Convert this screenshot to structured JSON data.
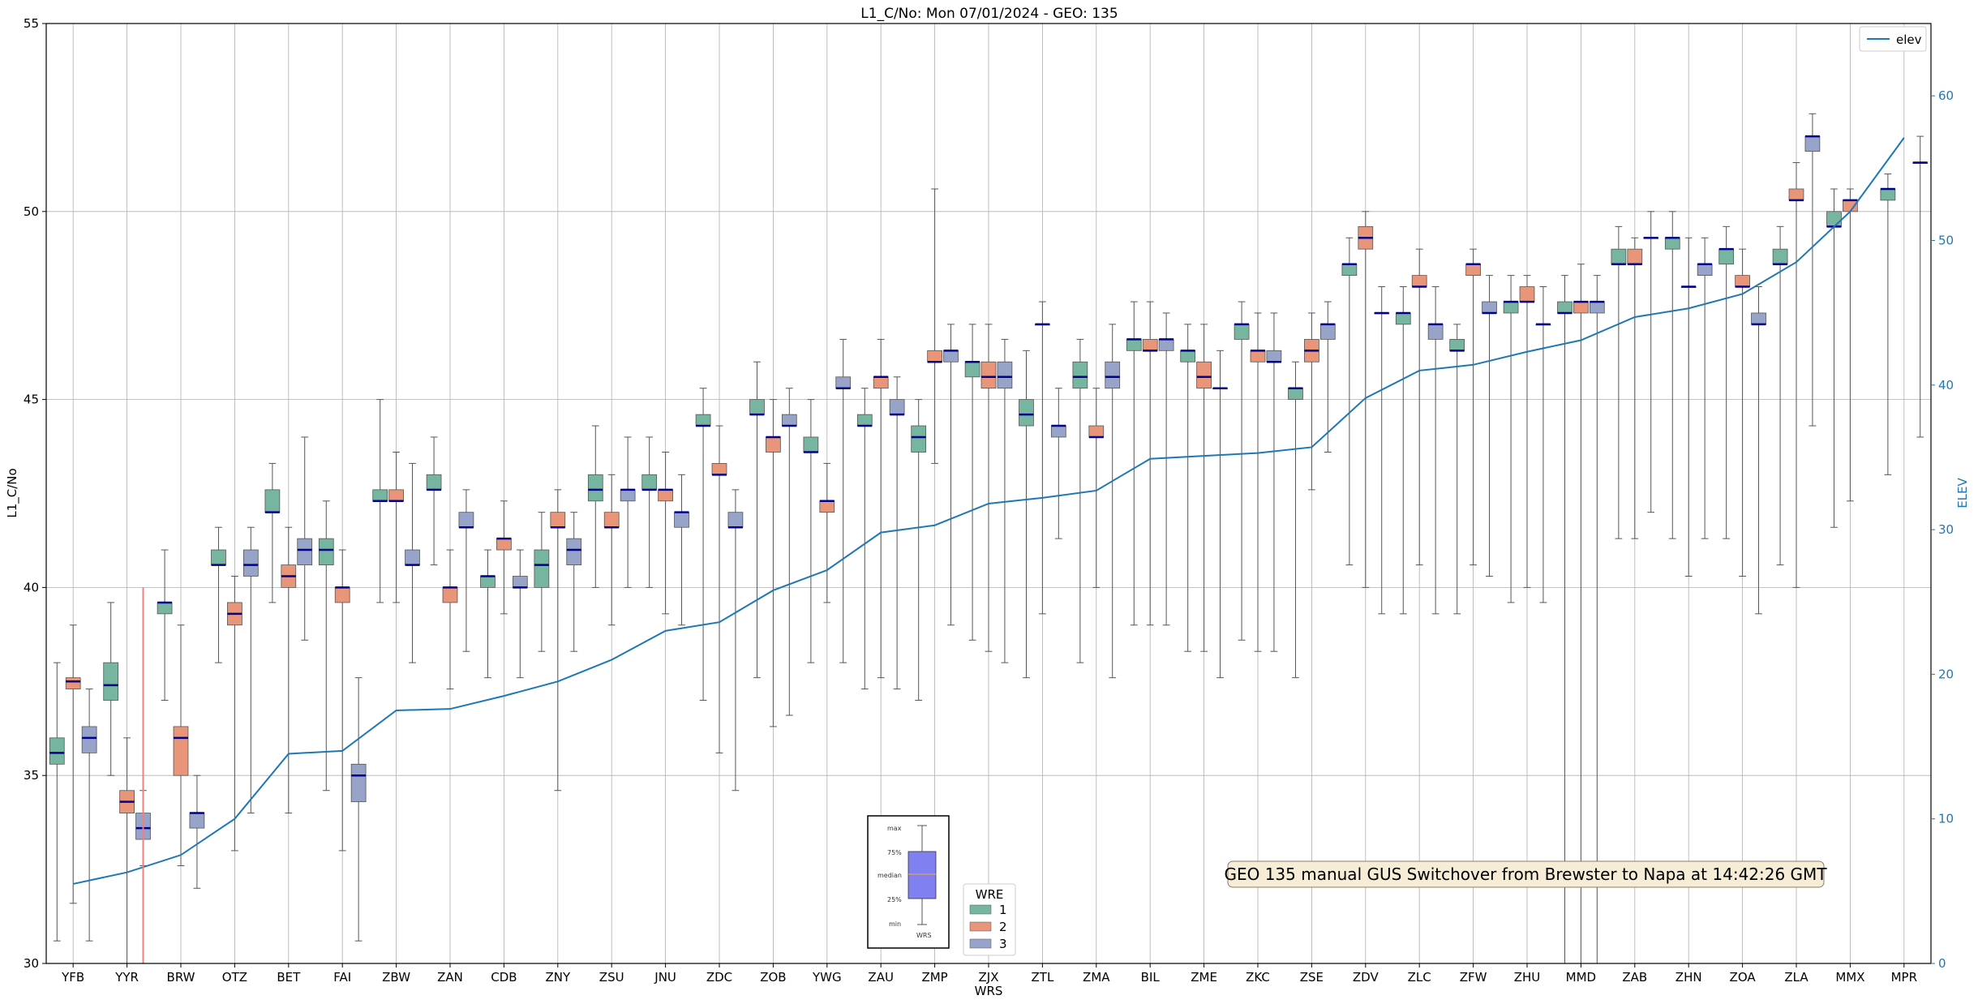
{
  "chart_data": {
    "type": "box",
    "title": "L1_C/No: Mon 07/01/2024 - GEO: 135",
    "xlabel": "WRS",
    "ylabel": "L1_C/No",
    "y2label": "ELEV",
    "ylim": [
      30,
      55
    ],
    "y2lim": [
      0,
      65
    ],
    "yticks": [
      "30",
      "35",
      "40",
      "45",
      "50",
      "55"
    ],
    "y2ticks": [
      "0",
      "10",
      "20",
      "30",
      "40",
      "50",
      "60"
    ],
    "grid": true,
    "categories": [
      "YFB",
      "YYR",
      "BRW",
      "OTZ",
      "BET",
      "FAI",
      "ZBW",
      "ZAN",
      "CDB",
      "ZNY",
      "ZSU",
      "JNU",
      "ZDC",
      "ZOB",
      "YWG",
      "ZAU",
      "ZMP",
      "ZJX",
      "ZTL",
      "ZMA",
      "BIL",
      "ZME",
      "ZKC",
      "ZSE",
      "ZDV",
      "ZLC",
      "ZFW",
      "ZHU",
      "MMD",
      "ZAB",
      "ZHN",
      "ZOA",
      "ZLA",
      "MMX",
      "MPR"
    ],
    "wre_legend": {
      "title": "WRE",
      "entries": [
        {
          "name": "1",
          "color": "#76b5a0"
        },
        {
          "name": "2",
          "color": "#e8957a"
        },
        {
          "name": "3",
          "color": "#97a3c8"
        }
      ]
    },
    "elev_legend": {
      "name": "elev",
      "color": "#1f77b4"
    },
    "median_color": "#00008b",
    "vline": {
      "x": "YYR",
      "offset": 0.3,
      "color": "#f08080",
      "y": [
        30,
        40
      ]
    },
    "annotation": "GEO 135 manual GUS Switchover from Brewster to Napa at 14:42:26 GMT",
    "inset_labels": [
      "max",
      "75%",
      "median",
      "25%",
      "min",
      "WRS"
    ],
    "boxes": [
      {
        "cat": 0,
        "wre": 1,
        "min": 30.6,
        "q1": 35.3,
        "median": 35.6,
        "q3": 36.0,
        "max": 38.0
      },
      {
        "cat": 0,
        "wre": 2,
        "min": 31.6,
        "q1": 37.3,
        "median": 37.5,
        "q3": 37.6,
        "max": 39.0
      },
      {
        "cat": 0,
        "wre": 3,
        "min": 30.6,
        "q1": 35.6,
        "median": 36.0,
        "q3": 36.3,
        "max": 37.3
      },
      {
        "cat": 1,
        "wre": 1,
        "min": 35.0,
        "q1": 37.0,
        "median": 37.4,
        "q3": 38.0,
        "max": 39.6
      },
      {
        "cat": 1,
        "wre": 2,
        "min": 30.0,
        "q1": 34.0,
        "median": 34.3,
        "q3": 34.6,
        "max": 36.0
      },
      {
        "cat": 1,
        "wre": 3,
        "min": 32.6,
        "q1": 33.3,
        "median": 33.6,
        "q3": 34.0,
        "max": 34.6
      },
      {
        "cat": 2,
        "wre": 1,
        "min": 37.0,
        "q1": 39.3,
        "median": 39.6,
        "q3": 39.6,
        "max": 41.0
      },
      {
        "cat": 2,
        "wre": 2,
        "min": 32.6,
        "q1": 35.0,
        "median": 36.0,
        "q3": 36.3,
        "max": 39.0
      },
      {
        "cat": 2,
        "wre": 3,
        "min": 32.0,
        "q1": 33.6,
        "median": 34.0,
        "q3": 34.0,
        "max": 35.0
      },
      {
        "cat": 3,
        "wre": 1,
        "min": 38.0,
        "q1": 40.6,
        "median": 40.6,
        "q3": 41.0,
        "max": 41.6
      },
      {
        "cat": 3,
        "wre": 2,
        "min": 33.0,
        "q1": 39.0,
        "median": 39.3,
        "q3": 39.6,
        "max": 40.3
      },
      {
        "cat": 3,
        "wre": 3,
        "min": 34.0,
        "q1": 40.3,
        "median": 40.6,
        "q3": 41.0,
        "max": 41.6
      },
      {
        "cat": 4,
        "wre": 1,
        "min": 39.6,
        "q1": 42.0,
        "median": 42.0,
        "q3": 42.6,
        "max": 43.3
      },
      {
        "cat": 4,
        "wre": 2,
        "min": 34.0,
        "q1": 40.0,
        "median": 40.3,
        "q3": 40.6,
        "max": 41.6
      },
      {
        "cat": 4,
        "wre": 3,
        "min": 38.6,
        "q1": 40.6,
        "median": 41.0,
        "q3": 41.3,
        "max": 44.0
      },
      {
        "cat": 5,
        "wre": 1,
        "min": 34.6,
        "q1": 40.6,
        "median": 41.0,
        "q3": 41.3,
        "max": 42.3
      },
      {
        "cat": 5,
        "wre": 2,
        "min": 33.0,
        "q1": 39.6,
        "median": 40.0,
        "q3": 40.0,
        "max": 41.0
      },
      {
        "cat": 5,
        "wre": 3,
        "min": 30.6,
        "q1": 34.3,
        "median": 35.0,
        "q3": 35.3,
        "max": 37.6
      },
      {
        "cat": 6,
        "wre": 1,
        "min": 39.6,
        "q1": 42.3,
        "median": 42.3,
        "q3": 42.6,
        "max": 45.0
      },
      {
        "cat": 6,
        "wre": 2,
        "min": 39.6,
        "q1": 42.3,
        "median": 42.3,
        "q3": 42.6,
        "max": 43.6
      },
      {
        "cat": 6,
        "wre": 3,
        "min": 38.0,
        "q1": 40.6,
        "median": 40.6,
        "q3": 41.0,
        "max": 43.3
      },
      {
        "cat": 7,
        "wre": 1,
        "min": 40.6,
        "q1": 42.6,
        "median": 42.6,
        "q3": 43.0,
        "max": 44.0
      },
      {
        "cat": 7,
        "wre": 2,
        "min": 37.3,
        "q1": 39.6,
        "median": 40.0,
        "q3": 40.0,
        "max": 41.0
      },
      {
        "cat": 7,
        "wre": 3,
        "min": 38.3,
        "q1": 41.6,
        "median": 41.6,
        "q3": 42.0,
        "max": 42.6
      },
      {
        "cat": 8,
        "wre": 1,
        "min": 37.6,
        "q1": 40.0,
        "median": 40.3,
        "q3": 40.3,
        "max": 41.0
      },
      {
        "cat": 8,
        "wre": 2,
        "min": 39.3,
        "q1": 41.0,
        "median": 41.3,
        "q3": 41.3,
        "max": 42.3
      },
      {
        "cat": 8,
        "wre": 3,
        "min": 37.6,
        "q1": 40.0,
        "median": 40.0,
        "q3": 40.3,
        "max": 41.0
      },
      {
        "cat": 9,
        "wre": 1,
        "min": 38.3,
        "q1": 40.0,
        "median": 40.6,
        "q3": 41.0,
        "max": 42.0
      },
      {
        "cat": 9,
        "wre": 2,
        "min": 34.6,
        "q1": 41.6,
        "median": 41.6,
        "q3": 42.0,
        "max": 42.6
      },
      {
        "cat": 9,
        "wre": 3,
        "min": 38.3,
        "q1": 40.6,
        "median": 41.0,
        "q3": 41.3,
        "max": 42.0
      },
      {
        "cat": 10,
        "wre": 1,
        "min": 40.0,
        "q1": 42.3,
        "median": 42.6,
        "q3": 43.0,
        "max": 44.3
      },
      {
        "cat": 10,
        "wre": 2,
        "min": 39.0,
        "q1": 41.6,
        "median": 41.6,
        "q3": 42.0,
        "max": 43.0
      },
      {
        "cat": 10,
        "wre": 3,
        "min": 40.0,
        "q1": 42.3,
        "median": 42.6,
        "q3": 42.6,
        "max": 44.0
      },
      {
        "cat": 11,
        "wre": 1,
        "min": 40.0,
        "q1": 42.6,
        "median": 42.6,
        "q3": 43.0,
        "max": 44.0
      },
      {
        "cat": 11,
        "wre": 2,
        "min": 39.3,
        "q1": 42.3,
        "median": 42.6,
        "q3": 42.6,
        "max": 43.6
      },
      {
        "cat": 11,
        "wre": 3,
        "min": 39.0,
        "q1": 41.6,
        "median": 42.0,
        "q3": 42.0,
        "max": 43.0
      },
      {
        "cat": 12,
        "wre": 1,
        "min": 37.0,
        "q1": 44.3,
        "median": 44.3,
        "q3": 44.6,
        "max": 45.3
      },
      {
        "cat": 12,
        "wre": 2,
        "min": 35.6,
        "q1": 43.0,
        "median": 43.0,
        "q3": 43.3,
        "max": 44.3
      },
      {
        "cat": 12,
        "wre": 3,
        "min": 34.6,
        "q1": 41.6,
        "median": 41.6,
        "q3": 42.0,
        "max": 42.6
      },
      {
        "cat": 13,
        "wre": 1,
        "min": 37.6,
        "q1": 44.6,
        "median": 44.6,
        "q3": 45.0,
        "max": 46.0
      },
      {
        "cat": 13,
        "wre": 2,
        "min": 36.3,
        "q1": 43.6,
        "median": 44.0,
        "q3": 44.0,
        "max": 45.0
      },
      {
        "cat": 13,
        "wre": 3,
        "min": 36.6,
        "q1": 44.3,
        "median": 44.3,
        "q3": 44.6,
        "max": 45.3
      },
      {
        "cat": 14,
        "wre": 1,
        "min": 38.0,
        "q1": 43.6,
        "median": 43.6,
        "q3": 44.0,
        "max": 45.0
      },
      {
        "cat": 14,
        "wre": 2,
        "min": 39.6,
        "q1": 42.0,
        "median": 42.3,
        "q3": 42.3,
        "max": 43.3
      },
      {
        "cat": 14,
        "wre": 3,
        "min": 38.0,
        "q1": 45.3,
        "median": 45.3,
        "q3": 45.6,
        "max": 46.6
      },
      {
        "cat": 15,
        "wre": 1,
        "min": 37.3,
        "q1": 44.3,
        "median": 44.3,
        "q3": 44.6,
        "max": 45.3
      },
      {
        "cat": 15,
        "wre": 2,
        "min": 37.6,
        "q1": 45.3,
        "median": 45.6,
        "q3": 45.6,
        "max": 46.6
      },
      {
        "cat": 15,
        "wre": 3,
        "min": 37.3,
        "q1": 44.6,
        "median": 44.6,
        "q3": 45.0,
        "max": 45.6
      },
      {
        "cat": 16,
        "wre": 1,
        "min": 37.0,
        "q1": 43.6,
        "median": 44.0,
        "q3": 44.3,
        "max": 45.0
      },
      {
        "cat": 16,
        "wre": 2,
        "min": 43.3,
        "q1": 46.0,
        "median": 46.0,
        "q3": 46.3,
        "max": 50.6
      },
      {
        "cat": 16,
        "wre": 3,
        "min": 39.0,
        "q1": 46.0,
        "median": 46.3,
        "q3": 46.3,
        "max": 47.0
      },
      {
        "cat": 17,
        "wre": 1,
        "min": 38.6,
        "q1": 45.6,
        "median": 46.0,
        "q3": 46.0,
        "max": 47.0
      },
      {
        "cat": 17,
        "wre": 2,
        "min": 38.3,
        "q1": 45.3,
        "median": 45.6,
        "q3": 46.0,
        "max": 47.0
      },
      {
        "cat": 17,
        "wre": 3,
        "min": 38.0,
        "q1": 45.3,
        "median": 45.6,
        "q3": 46.0,
        "max": 46.6
      },
      {
        "cat": 18,
        "wre": 1,
        "min": 37.6,
        "q1": 44.3,
        "median": 44.6,
        "q3": 45.0,
        "max": 46.3
      },
      {
        "cat": 18,
        "wre": 2,
        "min": 39.3,
        "q1": 47.0,
        "median": 47.0,
        "q3": 47.0,
        "max": 47.6
      },
      {
        "cat": 18,
        "wre": 3,
        "min": 41.3,
        "q1": 44.0,
        "median": 44.3,
        "q3": 44.3,
        "max": 45.3
      },
      {
        "cat": 19,
        "wre": 1,
        "min": 38.0,
        "q1": 45.3,
        "median": 45.6,
        "q3": 46.0,
        "max": 46.6
      },
      {
        "cat": 19,
        "wre": 2,
        "min": 40.0,
        "q1": 44.0,
        "median": 44.0,
        "q3": 44.3,
        "max": 45.3
      },
      {
        "cat": 19,
        "wre": 3,
        "min": 37.6,
        "q1": 45.3,
        "median": 45.6,
        "q3": 46.0,
        "max": 47.0
      },
      {
        "cat": 20,
        "wre": 1,
        "min": 39.0,
        "q1": 46.3,
        "median": 46.6,
        "q3": 46.6,
        "max": 47.6
      },
      {
        "cat": 20,
        "wre": 2,
        "min": 39.0,
        "q1": 46.3,
        "median": 46.3,
        "q3": 46.6,
        "max": 47.6
      },
      {
        "cat": 20,
        "wre": 3,
        "min": 39.0,
        "q1": 46.3,
        "median": 46.6,
        "q3": 46.6,
        "max": 47.3
      },
      {
        "cat": 21,
        "wre": 1,
        "min": 38.3,
        "q1": 46.0,
        "median": 46.3,
        "q3": 46.3,
        "max": 47.0
      },
      {
        "cat": 21,
        "wre": 2,
        "min": 38.3,
        "q1": 45.3,
        "median": 45.6,
        "q3": 46.0,
        "max": 47.0
      },
      {
        "cat": 21,
        "wre": 3,
        "min": 37.6,
        "q1": 45.3,
        "median": 45.3,
        "q3": 45.3,
        "max": 46.3
      },
      {
        "cat": 22,
        "wre": 1,
        "min": 38.6,
        "q1": 46.6,
        "median": 47.0,
        "q3": 47.0,
        "max": 47.6
      },
      {
        "cat": 22,
        "wre": 2,
        "min": 38.3,
        "q1": 46.0,
        "median": 46.3,
        "q3": 46.3,
        "max": 47.3
      },
      {
        "cat": 22,
        "wre": 3,
        "min": 38.3,
        "q1": 46.0,
        "median": 46.0,
        "q3": 46.3,
        "max": 47.3
      },
      {
        "cat": 23,
        "wre": 1,
        "min": 37.6,
        "q1": 45.0,
        "median": 45.3,
        "q3": 45.3,
        "max": 46.0
      },
      {
        "cat": 23,
        "wre": 2,
        "min": 42.6,
        "q1": 46.0,
        "median": 46.3,
        "q3": 46.6,
        "max": 47.3
      },
      {
        "cat": 23,
        "wre": 3,
        "min": 43.6,
        "q1": 46.6,
        "median": 47.0,
        "q3": 47.0,
        "max": 47.6
      },
      {
        "cat": 24,
        "wre": 1,
        "min": 40.6,
        "q1": 48.3,
        "median": 48.6,
        "q3": 48.6,
        "max": 49.3
      },
      {
        "cat": 24,
        "wre": 2,
        "min": 40.0,
        "q1": 49.0,
        "median": 49.3,
        "q3": 49.6,
        "max": 50.0
      },
      {
        "cat": 24,
        "wre": 3,
        "min": 39.3,
        "q1": 47.3,
        "median": 47.3,
        "q3": 47.3,
        "max": 48.0
      },
      {
        "cat": 25,
        "wre": 1,
        "min": 39.3,
        "q1": 47.0,
        "median": 47.3,
        "q3": 47.3,
        "max": 48.0
      },
      {
        "cat": 25,
        "wre": 2,
        "min": 40.6,
        "q1": 48.0,
        "median": 48.0,
        "q3": 48.3,
        "max": 49.0
      },
      {
        "cat": 25,
        "wre": 3,
        "min": 39.3,
        "q1": 46.6,
        "median": 47.0,
        "q3": 47.0,
        "max": 48.0
      },
      {
        "cat": 26,
        "wre": 1,
        "min": 39.3,
        "q1": 46.3,
        "median": 46.3,
        "q3": 46.6,
        "max": 47.0
      },
      {
        "cat": 26,
        "wre": 2,
        "min": 40.6,
        "q1": 48.3,
        "median": 48.6,
        "q3": 48.6,
        "max": 49.0
      },
      {
        "cat": 26,
        "wre": 3,
        "min": 40.3,
        "q1": 47.3,
        "median": 47.3,
        "q3": 47.6,
        "max": 48.3
      },
      {
        "cat": 27,
        "wre": 1,
        "min": 39.6,
        "q1": 47.3,
        "median": 47.6,
        "q3": 47.6,
        "max": 48.3
      },
      {
        "cat": 27,
        "wre": 2,
        "min": 40.0,
        "q1": 47.6,
        "median": 47.6,
        "q3": 48.0,
        "max": 48.3
      },
      {
        "cat": 27,
        "wre": 3,
        "min": 39.6,
        "q1": 47.0,
        "median": 47.0,
        "q3": 47.0,
        "max": 48.0
      },
      {
        "cat": 28,
        "wre": 1,
        "min": 30.0,
        "q1": 47.3,
        "median": 47.3,
        "q3": 47.6,
        "max": 48.3
      },
      {
        "cat": 28,
        "wre": 2,
        "min": 30.0,
        "q1": 47.3,
        "median": 47.6,
        "q3": 47.6,
        "max": 48.6
      },
      {
        "cat": 28,
        "wre": 3,
        "min": 30.0,
        "q1": 47.3,
        "median": 47.6,
        "q3": 47.6,
        "max": 48.3
      },
      {
        "cat": 29,
        "wre": 1,
        "min": 41.3,
        "q1": 48.6,
        "median": 48.6,
        "q3": 49.0,
        "max": 49.6
      },
      {
        "cat": 29,
        "wre": 2,
        "min": 41.3,
        "q1": 48.6,
        "median": 48.6,
        "q3": 49.0,
        "max": 49.3
      },
      {
        "cat": 29,
        "wre": 3,
        "min": 42.0,
        "q1": 49.3,
        "median": 49.3,
        "q3": 49.3,
        "max": 50.0
      },
      {
        "cat": 30,
        "wre": 1,
        "min": 41.3,
        "q1": 49.0,
        "median": 49.3,
        "q3": 49.3,
        "max": 50.0
      },
      {
        "cat": 30,
        "wre": 2,
        "min": 40.3,
        "q1": 48.0,
        "median": 48.0,
        "q3": 48.0,
        "max": 49.3
      },
      {
        "cat": 30,
        "wre": 3,
        "min": 41.3,
        "q1": 48.3,
        "median": 48.6,
        "q3": 48.6,
        "max": 49.3
      },
      {
        "cat": 31,
        "wre": 1,
        "min": 41.3,
        "q1": 48.6,
        "median": 49.0,
        "q3": 49.0,
        "max": 49.6
      },
      {
        "cat": 31,
        "wre": 2,
        "min": 40.3,
        "q1": 48.0,
        "median": 48.0,
        "q3": 48.3,
        "max": 49.0
      },
      {
        "cat": 31,
        "wre": 3,
        "min": 39.3,
        "q1": 47.0,
        "median": 47.0,
        "q3": 47.3,
        "max": 48.0
      },
      {
        "cat": 32,
        "wre": 1,
        "min": 40.6,
        "q1": 48.6,
        "median": 48.6,
        "q3": 49.0,
        "max": 49.6
      },
      {
        "cat": 32,
        "wre": 2,
        "min": 40.0,
        "q1": 50.3,
        "median": 50.3,
        "q3": 50.6,
        "max": 51.3
      },
      {
        "cat": 32,
        "wre": 3,
        "min": 44.3,
        "q1": 51.6,
        "median": 52.0,
        "q3": 52.0,
        "max": 52.6
      },
      {
        "cat": 33,
        "wre": 1,
        "min": 41.6,
        "q1": 49.6,
        "median": 49.6,
        "q3": 50.0,
        "max": 50.6
      },
      {
        "cat": 33,
        "wre": 2,
        "min": 42.3,
        "q1": 50.0,
        "median": 50.3,
        "q3": 50.3,
        "max": 50.6
      },
      {
        "cat": 34,
        "wre": 1,
        "min": 43.0,
        "q1": 50.3,
        "median": 50.6,
        "q3": 50.6,
        "max": 51.0
      },
      {
        "cat": 34,
        "wre": 3,
        "min": 44.0,
        "q1": 51.3,
        "median": 51.3,
        "q3": 51.3,
        "max": 52.0
      }
    ],
    "elev": [
      5.5,
      6.3,
      7.5,
      10.0,
      14.5,
      14.7,
      17.5,
      17.6,
      18.5,
      19.5,
      21.0,
      23.0,
      23.6,
      25.8,
      27.2,
      29.8,
      30.3,
      31.8,
      32.2,
      32.7,
      34.9,
      35.1,
      35.3,
      35.7,
      39.1,
      41.0,
      41.4,
      42.3,
      43.1,
      44.7,
      45.3,
      46.3,
      48.5,
      52.0,
      57.1
    ]
  }
}
